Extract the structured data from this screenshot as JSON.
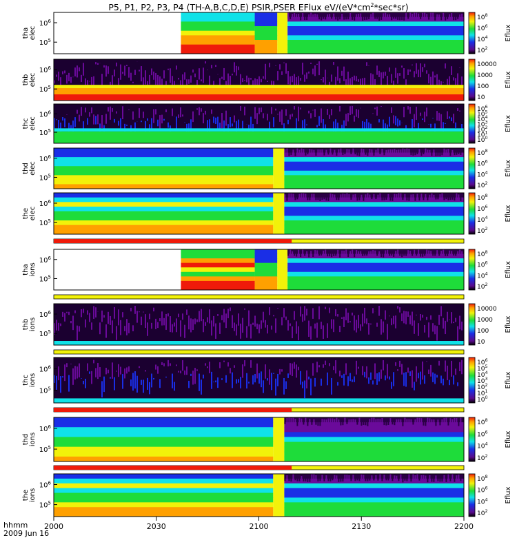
{
  "chart_data": {
    "type": "heatmap",
    "title": "P5, P1, P2, P3, P4 (TH-A,B,C,D,E) PSIR,PSER EFlux eV/(eV*cm2*sec*sr)",
    "title_parts": {
      "pre": "P5, P1, P2, P3, P4 (TH-A,B,C,D,E) PSIR,PSER EFlux eV/(eV*cm",
      "sup": "2",
      "post": "*sec*sr)"
    },
    "x_axis": {
      "unit_label": "hhmm",
      "date_label": "2009 Jun 16",
      "range": [
        "2000",
        "2200"
      ],
      "tick_labels": [
        "2000",
        "2030",
        "2100",
        "2130",
        "2200"
      ]
    },
    "colorbar_label": "Eflux",
    "panels": [
      {
        "id": "tha-elec",
        "probe": "tha",
        "species": "elec",
        "yticks": [
          "10^6",
          "10^5"
        ],
        "cbar_ticks": [
          "10^8",
          "10^6",
          "10^4",
          "10^2"
        ],
        "segments": [
          {
            "start": 0.0,
            "end": 0.31,
            "kind": "nodata"
          },
          {
            "start": 0.31,
            "end": 0.49,
            "kind": "tha"
          },
          {
            "start": 0.49,
            "end": 0.545,
            "kind": "blue_top"
          },
          {
            "start": 0.545,
            "end": 0.57,
            "kind": "yellow"
          },
          {
            "start": 0.57,
            "end": 1.0,
            "kind": "quiet"
          }
        ]
      },
      {
        "id": "thb-elec",
        "probe": "thb",
        "species": "elec",
        "yticks": [
          "10^6",
          "10^5"
        ],
        "cbar_ticks": [
          "10000",
          "1000",
          "100",
          "10"
        ],
        "segments": [
          {
            "start": 0.0,
            "end": 1.0,
            "kind": "thb_elec"
          }
        ]
      },
      {
        "id": "thc-elec",
        "probe": "thc",
        "species": "elec",
        "yticks": [
          "10^6",
          "10^5"
        ],
        "cbar_ticks": [
          "10^6",
          "10^5",
          "10^4",
          "10^3",
          "10^2",
          "10^1",
          "10^0"
        ],
        "segments": [
          {
            "start": 0.0,
            "end": 1.0,
            "kind": "thc_elec"
          }
        ]
      },
      {
        "id": "thd-elec",
        "probe": "thd",
        "species": "elec",
        "yticks": [
          "10^6",
          "10^5"
        ],
        "cbar_ticks": [
          "10^8",
          "10^6",
          "10^4",
          "10^2"
        ],
        "segments": [
          {
            "start": 0.0,
            "end": 0.535,
            "kind": "sheet"
          },
          {
            "start": 0.535,
            "end": 0.562,
            "kind": "yellow"
          },
          {
            "start": 0.562,
            "end": 1.0,
            "kind": "quiet"
          }
        ]
      },
      {
        "id": "the-elec",
        "probe": "the",
        "species": "elec",
        "yticks": [
          "10^6",
          "10^5"
        ],
        "cbar_ticks": [
          "10^8",
          "10^6",
          "10^4",
          "10^2"
        ],
        "segments": [
          {
            "start": 0.0,
            "end": 0.535,
            "kind": "sheet_bright"
          },
          {
            "start": 0.535,
            "end": 0.562,
            "kind": "yellow"
          },
          {
            "start": 0.562,
            "end": 1.0,
            "kind": "quiet"
          }
        ]
      },
      {
        "id": "tha-ions",
        "probe": "tha",
        "species": "ions",
        "yticks": [
          "10^6",
          "10^5"
        ],
        "cbar_ticks": [
          "10^8",
          "10^6",
          "10^4",
          "10^2"
        ],
        "segments": [
          {
            "start": 0.0,
            "end": 0.31,
            "kind": "nodata"
          },
          {
            "start": 0.31,
            "end": 0.49,
            "kind": "tha_ions"
          },
          {
            "start": 0.49,
            "end": 0.545,
            "kind": "blue_top"
          },
          {
            "start": 0.545,
            "end": 0.57,
            "kind": "yellow"
          },
          {
            "start": 0.57,
            "end": 1.0,
            "kind": "quiet"
          }
        ]
      },
      {
        "id": "thb-ions",
        "probe": "thb",
        "species": "ions",
        "yticks": [
          "10^6",
          "10^5"
        ],
        "cbar_ticks": [
          "10000",
          "1000",
          "100",
          "10"
        ],
        "segments": [
          {
            "start": 0.0,
            "end": 1.0,
            "kind": "noise_purple"
          }
        ]
      },
      {
        "id": "thc-ions",
        "probe": "thc",
        "species": "ions",
        "yticks": [
          "10^6",
          "10^5"
        ],
        "cbar_ticks": [
          "10^6",
          "10^5",
          "10^4",
          "10^3",
          "10^2",
          "10^1",
          "10^0"
        ],
        "segments": [
          {
            "start": 0.0,
            "end": 1.0,
            "kind": "noise_blue"
          }
        ]
      },
      {
        "id": "thd-ions",
        "probe": "thd",
        "species": "ions",
        "yticks": [
          "10^6",
          "10^5"
        ],
        "cbar_ticks": [
          "10^8",
          "10^6",
          "10^4",
          "10^2"
        ],
        "segments": [
          {
            "start": 0.0,
            "end": 0.535,
            "kind": "sheet"
          },
          {
            "start": 0.535,
            "end": 0.562,
            "kind": "yellow"
          },
          {
            "start": 0.562,
            "end": 1.0,
            "kind": "quiet_dark"
          }
        ]
      },
      {
        "id": "the-ions",
        "probe": "the",
        "species": "ions",
        "yticks": [
          "10^6",
          "10^5"
        ],
        "cbar_ticks": [
          "10^8",
          "10^6",
          "10^4",
          "10^2"
        ],
        "segments": [
          {
            "start": 0.0,
            "end": 0.535,
            "kind": "sheet_bright"
          },
          {
            "start": 0.535,
            "end": 0.562,
            "kind": "yellow"
          },
          {
            "start": 0.562,
            "end": 1.0,
            "kind": "quiet"
          }
        ]
      }
    ],
    "mode_bars": [
      {
        "after": "the-elec",
        "red_until": 0.58
      },
      {
        "after": "tha-ions",
        "red_until": 0.0
      },
      {
        "after": "thb-ions",
        "red_until": 0.0
      },
      {
        "after": "thc-ions",
        "red_until": 0.58
      },
      {
        "after": "thd-ions",
        "red_until": 0.58
      }
    ],
    "colors": {
      "purple": "#6a0a9a",
      "dark_purple": "#2a0044",
      "blue": "#1a2ee6",
      "cyan": "#10e2e8",
      "green": "#1edc3a",
      "yellow": "#f2f20a",
      "orange": "#ffa000",
      "red": "#ef1a0a"
    }
  }
}
